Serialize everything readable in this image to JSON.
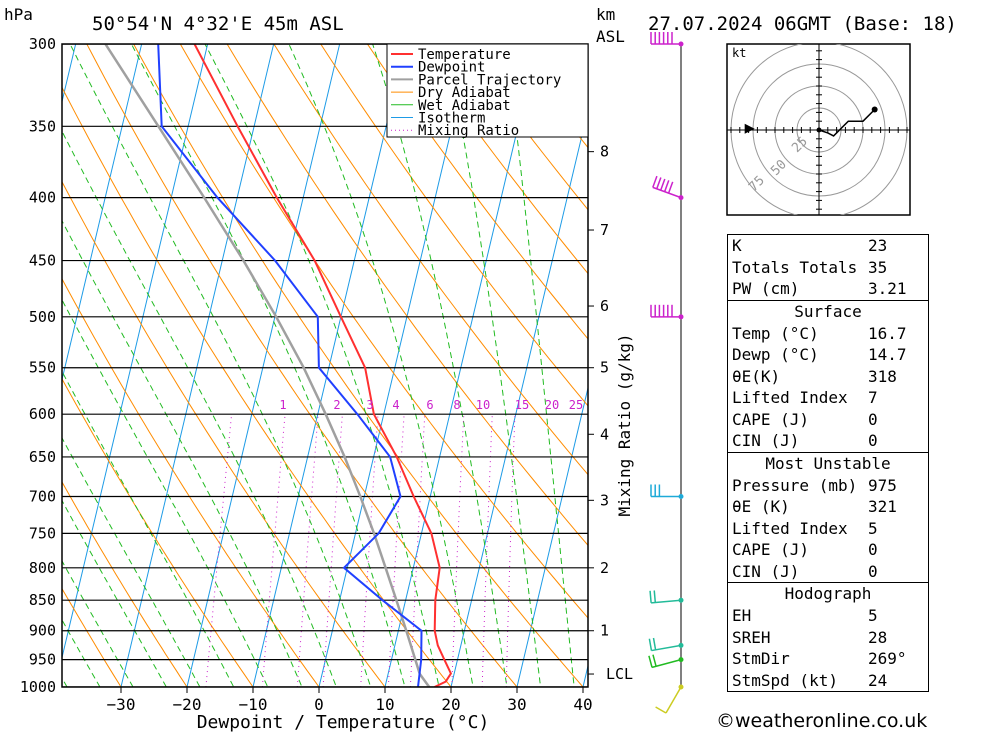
{
  "header": {
    "unit_left": "hPa",
    "location": "50°54'N 4°32'E 45m ASL",
    "unit_km": "km",
    "unit_asl": "ASL",
    "datetime": "27.07.2024 06GMT (Base: 18)"
  },
  "chart_data": {
    "type": "skew-t",
    "xlabel": "Dewpoint / Temperature (°C)",
    "mixing_ratio_axis_label": "Mixing Ratio (g/kg)",
    "pressure_levels": [
      "300",
      "350",
      "400",
      "450",
      "500",
      "550",
      "600",
      "650",
      "700",
      "750",
      "800",
      "850",
      "900",
      "950",
      "1000"
    ],
    "temperature_ticks": [
      "−30",
      "−20",
      "−10",
      "0",
      "10",
      "20",
      "30",
      "40"
    ],
    "km_ticks": [
      {
        "label": "8",
        "p": 367
      },
      {
        "label": "7",
        "p": 425
      },
      {
        "label": "6",
        "p": 490
      },
      {
        "label": "5",
        "p": 550
      },
      {
        "label": "4",
        "p": 623
      },
      {
        "label": "3",
        "p": 705
      },
      {
        "label": "2",
        "p": 800
      },
      {
        "label": "1",
        "p": 900
      },
      {
        "label": "LCL",
        "p": 976
      }
    ],
    "mixing_ratio_labels": [
      "1",
      "2",
      "3",
      "4",
      "6",
      "8",
      "10",
      "15",
      "20",
      "25"
    ],
    "legend": [
      "Temperature",
      "Dewpoint",
      "Parcel Trajectory",
      "Dry Adiabat",
      "Wet Adiabat",
      "Isotherm",
      "Mixing Ratio"
    ],
    "colors": {
      "temperature": "#ff3030",
      "dewpoint": "#2040ff",
      "parcel": "#a0a0a0",
      "dry_adiabat": "#ff8c00",
      "wet_adiabat": "#22bb22",
      "isotherm": "#1e9be6",
      "mixing_ratio": "#cc22cc"
    },
    "temperature_profile": [
      {
        "p": 1000,
        "t": 17.5
      },
      {
        "p": 990,
        "t": 19.0
      },
      {
        "p": 975,
        "t": 19.5
      },
      {
        "p": 950,
        "t": 18.0
      },
      {
        "p": 925,
        "t": 16.5
      },
      {
        "p": 900,
        "t": 15.5
      },
      {
        "p": 850,
        "t": 14.5
      },
      {
        "p": 800,
        "t": 14.0
      },
      {
        "p": 750,
        "t": 11.5
      },
      {
        "p": 700,
        "t": 7.5
      },
      {
        "p": 650,
        "t": 3.5
      },
      {
        "p": 600,
        "t": -1.5
      },
      {
        "p": 550,
        "t": -4.5
      },
      {
        "p": 500,
        "t": -10.0
      },
      {
        "p": 450,
        "t": -16.0
      },
      {
        "p": 400,
        "t": -24.0
      },
      {
        "p": 350,
        "t": -32.5
      },
      {
        "p": 300,
        "t": -42.0
      }
    ],
    "dewpoint_profile": [
      {
        "p": 1000,
        "t": 15.0
      },
      {
        "p": 950,
        "t": 14.5
      },
      {
        "p": 900,
        "t": 13.5
      },
      {
        "p": 850,
        "t": 6.5
      },
      {
        "p": 800,
        "t": -0.5
      },
      {
        "p": 750,
        "t": 3.5
      },
      {
        "p": 700,
        "t": 5.5
      },
      {
        "p": 650,
        "t": 2.5
      },
      {
        "p": 600,
        "t": -4.0
      },
      {
        "p": 550,
        "t": -11.5
      },
      {
        "p": 500,
        "t": -13.5
      },
      {
        "p": 450,
        "t": -22.0
      },
      {
        "p": 400,
        "t": -33.0
      },
      {
        "p": 350,
        "t": -44.0
      },
      {
        "p": 300,
        "t": -47.5
      }
    ],
    "parcel_profile": [
      {
        "p": 1000,
        "t": 16.7
      },
      {
        "p": 976,
        "t": 14.8
      },
      {
        "p": 950,
        "t": 13.6
      },
      {
        "p": 900,
        "t": 11.2
      },
      {
        "p": 850,
        "t": 8.6
      },
      {
        "p": 800,
        "t": 5.8
      },
      {
        "p": 750,
        "t": 2.8
      },
      {
        "p": 700,
        "t": -0.6
      },
      {
        "p": 650,
        "t": -4.4
      },
      {
        "p": 600,
        "t": -8.8
      },
      {
        "p": 550,
        "t": -13.8
      },
      {
        "p": 500,
        "t": -19.8
      },
      {
        "p": 450,
        "t": -26.8
      },
      {
        "p": 400,
        "t": -35.0
      },
      {
        "p": 350,
        "t": -44.5
      },
      {
        "p": 300,
        "t": -55.5
      }
    ],
    "wind_barbs": [
      {
        "p": 300,
        "dir": 270,
        "spd": 60,
        "color": "#cc22cc"
      },
      {
        "p": 400,
        "dir": 290,
        "spd": 50,
        "color": "#cc22cc"
      },
      {
        "p": 500,
        "dir": 270,
        "spd": 60,
        "color": "#cc22cc"
      },
      {
        "p": 700,
        "dir": 270,
        "spd": 30,
        "color": "#1eaad8"
      },
      {
        "p": 850,
        "dir": 265,
        "spd": 20,
        "color": "#22bb99"
      },
      {
        "p": 925,
        "dir": 260,
        "spd": 20,
        "color": "#22bb99"
      },
      {
        "p": 950,
        "dir": 255,
        "spd": 20,
        "color": "#22bb22"
      },
      {
        "p": 1000,
        "dir": 210,
        "spd": 10,
        "color": "#cccc22"
      }
    ],
    "hodograph": {
      "unit": "kt",
      "ring_labels": [
        "25",
        "50",
        "75"
      ],
      "points": [
        [
          0,
          0
        ],
        [
          3,
          -1
        ],
        [
          5,
          -2
        ],
        [
          10,
          3
        ],
        [
          15,
          3
        ],
        [
          19,
          7
        ]
      ],
      "storm_motion": {
        "dir": 269,
        "spd": 24
      }
    }
  },
  "indices": {
    "k": {
      "label": "K",
      "value": "23"
    },
    "tt": {
      "label": "Totals Totals",
      "value": "35"
    },
    "pw": {
      "label": "PW (cm)",
      "value": "3.21"
    }
  },
  "surface": {
    "title": "Surface",
    "rows": [
      {
        "label": "Temp (°C)",
        "value": "16.7"
      },
      {
        "label": "Dewp (°C)",
        "value": "14.7"
      },
      {
        "label": "θE(K)",
        "value": "318"
      },
      {
        "label": "Lifted Index",
        "value": "7"
      },
      {
        "label": "CAPE (J)",
        "value": "0"
      },
      {
        "label": "CIN (J)",
        "value": "0"
      }
    ]
  },
  "most_unstable": {
    "title": "Most Unstable",
    "rows": [
      {
        "label": "Pressure (mb)",
        "value": "975"
      },
      {
        "label": "θE (K)",
        "value": "321"
      },
      {
        "label": "Lifted Index",
        "value": "5"
      },
      {
        "label": "CAPE (J)",
        "value": "0"
      },
      {
        "label": "CIN (J)",
        "value": "0"
      }
    ]
  },
  "hodograph_table": {
    "title": "Hodograph",
    "rows": [
      {
        "label": "EH",
        "value": "5"
      },
      {
        "label": "SREH",
        "value": "28"
      },
      {
        "label": "StmDir",
        "value": "269°"
      },
      {
        "label": "StmSpd (kt)",
        "value": "24"
      }
    ]
  },
  "footer": {
    "text": "©weatheronline.co.uk"
  }
}
